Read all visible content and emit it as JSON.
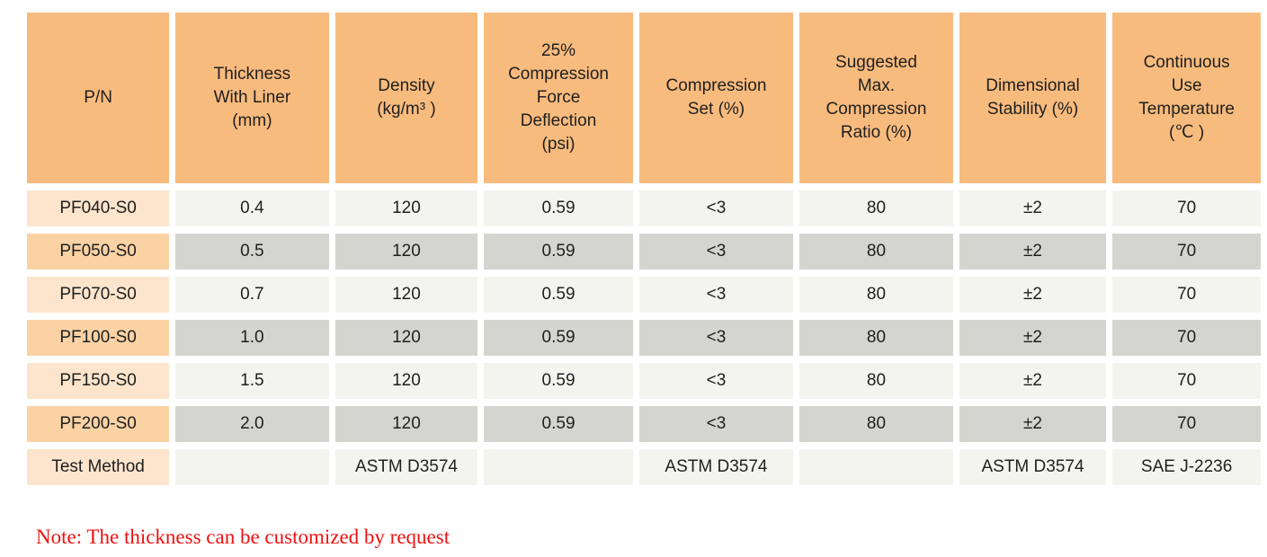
{
  "table": {
    "columns": [
      {
        "id": "pn",
        "lines": [
          "P/N"
        ]
      },
      {
        "id": "thickness",
        "lines": [
          "Thickness",
          "With Liner",
          "(mm)"
        ]
      },
      {
        "id": "density",
        "lines": [
          "Density",
          "(kg/m³ )"
        ]
      },
      {
        "id": "compression-force",
        "lines": [
          "25%",
          "Compression",
          "Force",
          "Deflection",
          "(psi)"
        ]
      },
      {
        "id": "compression-set",
        "lines": [
          "Compression",
          "Set (%)"
        ]
      },
      {
        "id": "max-compression",
        "lines": [
          "Suggested",
          "Max.",
          "Compression",
          "Ratio (%)"
        ]
      },
      {
        "id": "dimensional",
        "lines": [
          "Dimensional",
          "Stability (%)"
        ]
      },
      {
        "id": "temperature",
        "lines": [
          "Continuous",
          "Use",
          "Temperature",
          "(℃ )"
        ]
      }
    ],
    "rows": [
      {
        "cells": [
          "PF040-S0",
          "0.4",
          "120",
          "0.59",
          "<3",
          "80",
          "±2",
          "70"
        ]
      },
      {
        "cells": [
          "PF050-S0",
          "0.5",
          "120",
          "0.59",
          "<3",
          "80",
          "±2",
          "70"
        ]
      },
      {
        "cells": [
          "PF070-S0",
          "0.7",
          "120",
          "0.59",
          "<3",
          "80",
          "±2",
          "70"
        ]
      },
      {
        "cells": [
          "PF100-S0",
          "1.0",
          "120",
          "0.59",
          "<3",
          "80",
          "±2",
          "70"
        ]
      },
      {
        "cells": [
          "PF150-S0",
          "1.5",
          "120",
          "0.59",
          "<3",
          "80",
          "±2",
          "70"
        ]
      },
      {
        "cells": [
          "PF200-S0",
          "2.0",
          "120",
          "0.59",
          "<3",
          "80",
          "±2",
          "70"
        ]
      },
      {
        "cells": [
          "Test Method",
          "",
          "ASTM D3574",
          "",
          "ASTM D3574",
          "",
          "ASTM D3574",
          "SAE J-2236"
        ]
      }
    ]
  },
  "note": "Note: The thickness can be customized by request",
  "colors": {
    "header_bg": "#F8BB7E",
    "pn_light": "#FCE5CC",
    "pn_dark": "#FAD2A4",
    "cell_light": "#F4F4EF",
    "cell_dark": "#D4D5CE",
    "note_red": "#EE1111"
  }
}
